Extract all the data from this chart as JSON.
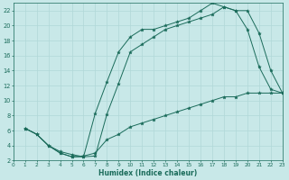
{
  "xlabel": "Humidex (Indice chaleur)",
  "bg_color": "#c8e8e8",
  "line_color": "#1a6b5a",
  "grid_color": "#b0d8d8",
  "xlim": [
    0,
    23
  ],
  "ylim": [
    2,
    23
  ],
  "yticks": [
    2,
    4,
    6,
    8,
    10,
    12,
    14,
    16,
    18,
    20,
    22
  ],
  "xticks": [
    0,
    1,
    2,
    3,
    4,
    5,
    6,
    7,
    8,
    9,
    10,
    11,
    12,
    13,
    14,
    15,
    16,
    17,
    18,
    19,
    20,
    21,
    22,
    23
  ],
  "curve1_x": [
    1,
    2,
    3,
    4,
    5,
    6,
    7,
    8,
    9,
    10,
    11,
    12,
    13,
    14,
    15,
    16,
    17,
    18,
    19,
    20,
    21,
    22,
    23
  ],
  "curve1_y": [
    6.3,
    5.5,
    4.0,
    3.2,
    2.8,
    2.5,
    2.6,
    8.2,
    12.3,
    16.5,
    17.5,
    18.5,
    19.5,
    20.0,
    20.5,
    21.0,
    21.5,
    22.5,
    22.0,
    22.0,
    19.0,
    14.0,
    11.0
  ],
  "curve2_x": [
    1,
    2,
    3,
    4,
    5,
    6,
    7,
    8,
    9,
    10,
    11,
    12,
    13,
    14,
    15,
    16,
    17,
    18,
    19,
    20,
    21,
    22,
    23
  ],
  "curve2_y": [
    6.3,
    5.5,
    4.0,
    3.0,
    2.5,
    2.5,
    8.3,
    12.5,
    16.5,
    18.5,
    19.5,
    19.5,
    20.0,
    20.5,
    21.0,
    22.0,
    23.0,
    22.5,
    22.0,
    19.5,
    14.5,
    11.5,
    11.0
  ],
  "curve3_x": [
    1,
    2,
    3,
    4,
    5,
    6,
    7,
    8,
    9,
    10,
    11,
    12,
    13,
    14,
    15,
    16,
    17,
    18,
    19,
    20,
    21,
    22,
    23
  ],
  "curve3_y": [
    6.3,
    5.5,
    4.0,
    3.0,
    2.5,
    2.6,
    3.0,
    4.8,
    5.5,
    6.5,
    7.0,
    7.5,
    8.0,
    8.5,
    9.0,
    9.5,
    10.0,
    10.5,
    10.5,
    11.0,
    11.0,
    11.0,
    11.0
  ]
}
